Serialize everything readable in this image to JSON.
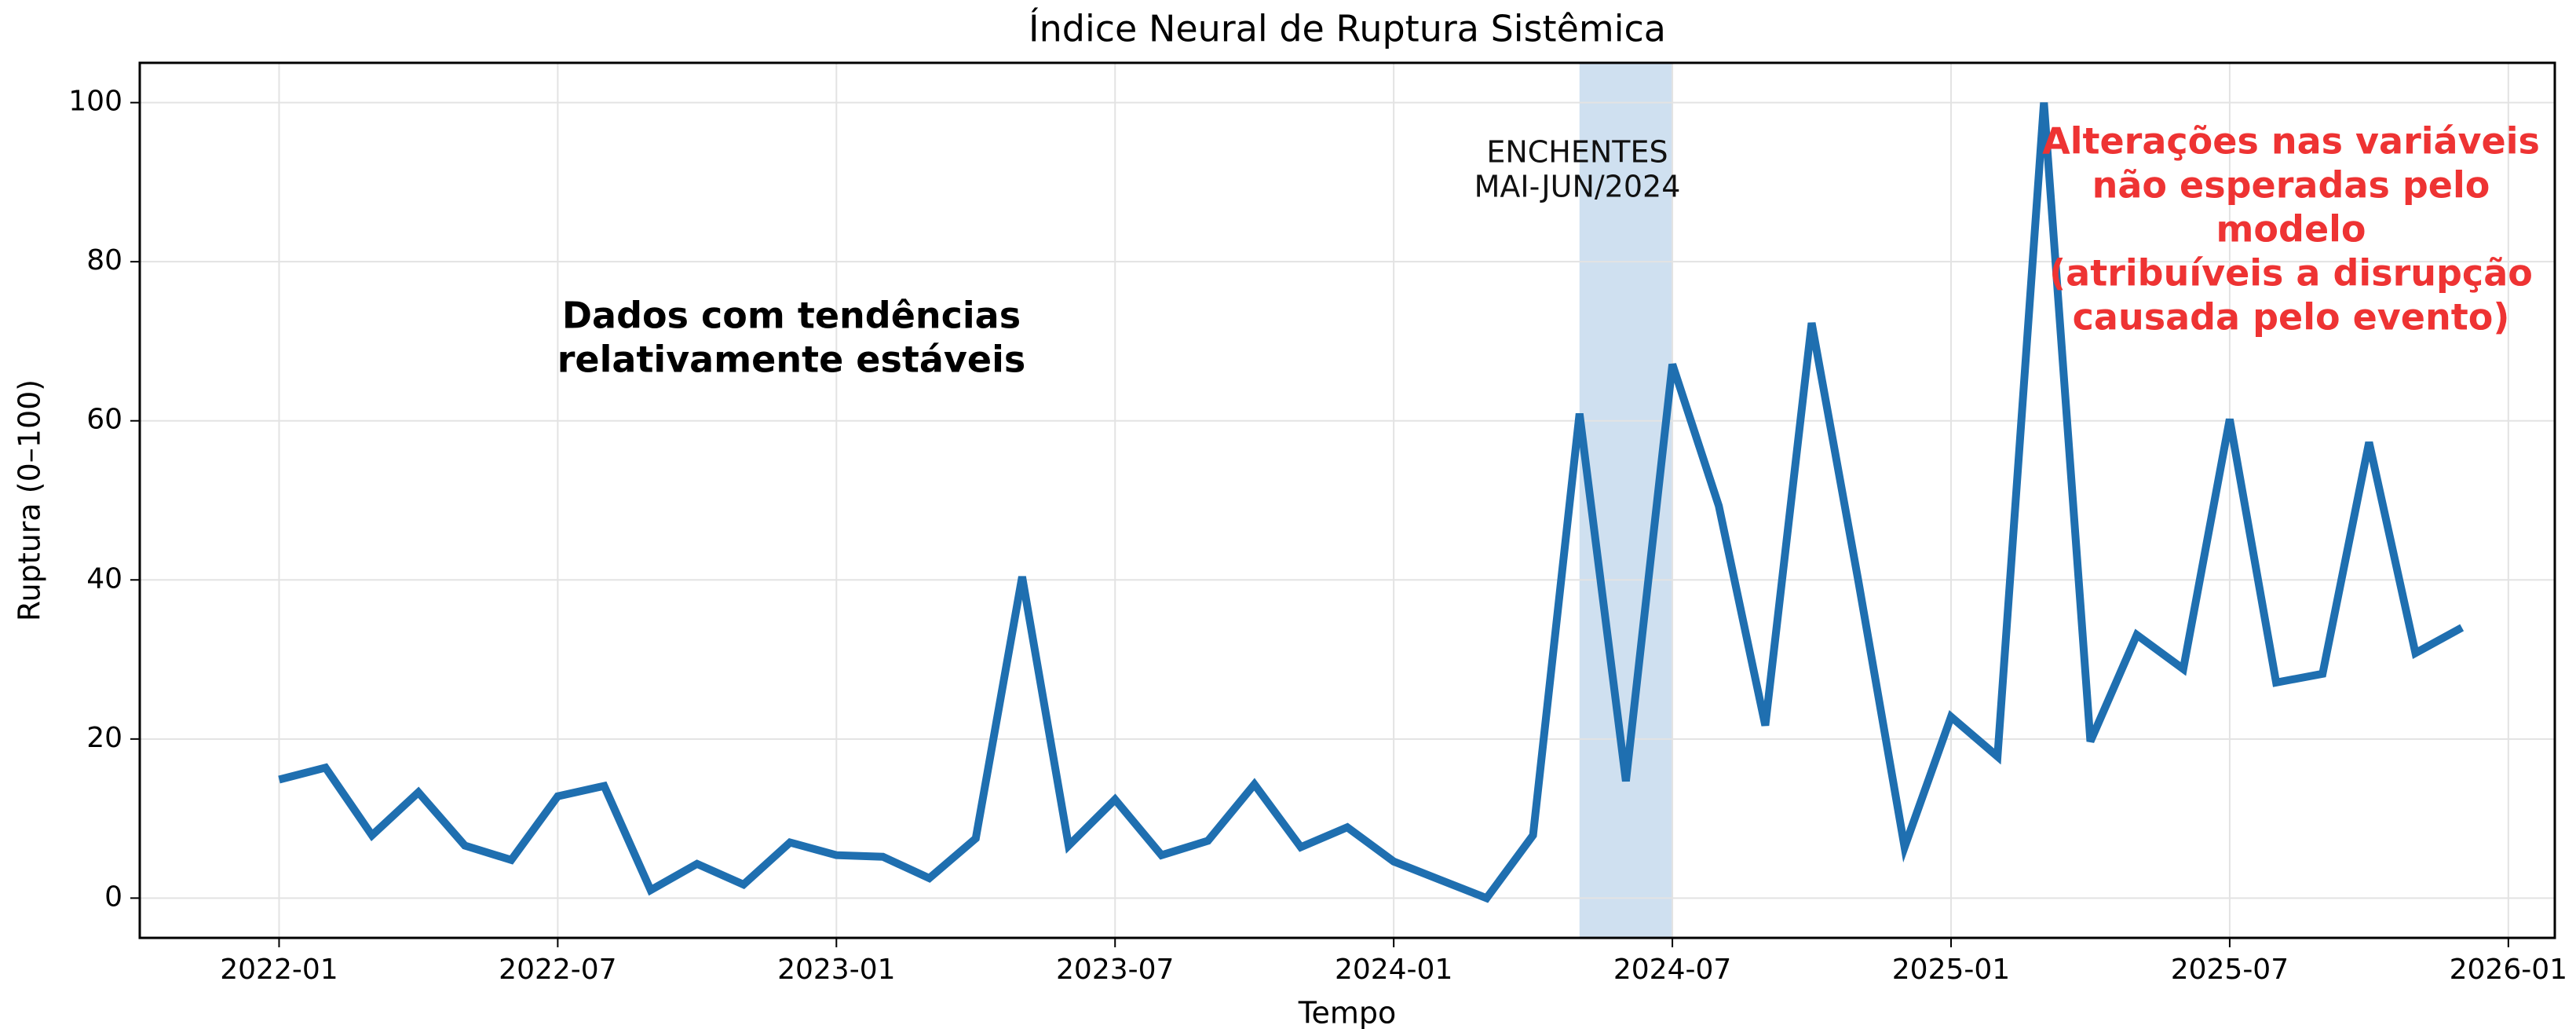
{
  "chart_data": {
    "type": "line",
    "title": "Índice Neural de Ruptura Sistêmica",
    "xlabel": "Tempo",
    "ylabel": "Ruptura (0–100)",
    "x": [
      "2022-01",
      "2022-02",
      "2022-03",
      "2022-04",
      "2022-05",
      "2022-06",
      "2022-07",
      "2022-08",
      "2022-09",
      "2022-10",
      "2022-11",
      "2022-12",
      "2023-01",
      "2023-02",
      "2023-03",
      "2023-04",
      "2023-05",
      "2023-06",
      "2023-07",
      "2023-08",
      "2023-09",
      "2023-10",
      "2023-11",
      "2023-12",
      "2024-01",
      "2024-02",
      "2024-03",
      "2024-04",
      "2024-05",
      "2024-06",
      "2024-07",
      "2024-08",
      "2024-09",
      "2024-10",
      "2024-11",
      "2024-12",
      "2025-01",
      "2025-02",
      "2025-03",
      "2025-04",
      "2025-05",
      "2025-06",
      "2025-07",
      "2025-08",
      "2025-09",
      "2025-10",
      "2025-11",
      "2025-12"
    ],
    "series": [
      {
        "name": "Ruptura",
        "color": "#1f6fb0",
        "values": [
          14.9,
          16.4,
          7.9,
          13.3,
          6.6,
          4.8,
          12.8,
          14.1,
          1.0,
          4.3,
          1.7,
          7.0,
          5.4,
          5.2,
          2.5,
          7.5,
          40.4,
          6.6,
          12.4,
          5.4,
          7.2,
          14.3,
          6.4,
          8.9,
          4.6,
          2.3,
          0,
          7.9,
          60.9,
          14.7,
          67.1,
          49.3,
          21.7,
          72.3,
          40,
          6.4,
          22.8,
          17.8,
          100,
          19.7,
          33.1,
          28.8,
          60.2,
          27.1,
          28.2,
          57.3,
          30.8,
          34.0
        ]
      }
    ],
    "xlim": [
      "2021-10",
      "2026-02"
    ],
    "xticks": [
      "2022-01",
      "2022-07",
      "2023-01",
      "2023-07",
      "2024-01",
      "2024-07",
      "2025-01",
      "2025-07",
      "2026-01"
    ],
    "ylim": [
      -5,
      105
    ],
    "yticks": [
      0,
      20,
      40,
      60,
      80,
      100
    ],
    "grid": true,
    "span": {
      "start": "2024-05",
      "end": "2024-07",
      "color": "#cfe0f0"
    },
    "annotations": [
      {
        "lines": [
          "ENCHENTES",
          "MAI-JUN/2024"
        ],
        "color": "#111111",
        "bold": false
      },
      {
        "lines": [
          "Dados com tendências",
          "relativamente estáveis"
        ],
        "color": "#000000",
        "bold": true
      },
      {
        "lines": [
          "Alterações nas variáveis",
          "não esperadas pelo",
          "modelo",
          "(atribuíveis a disrupção",
          "causada pelo evento)"
        ],
        "color": "#ee3333",
        "bold": true
      }
    ]
  }
}
